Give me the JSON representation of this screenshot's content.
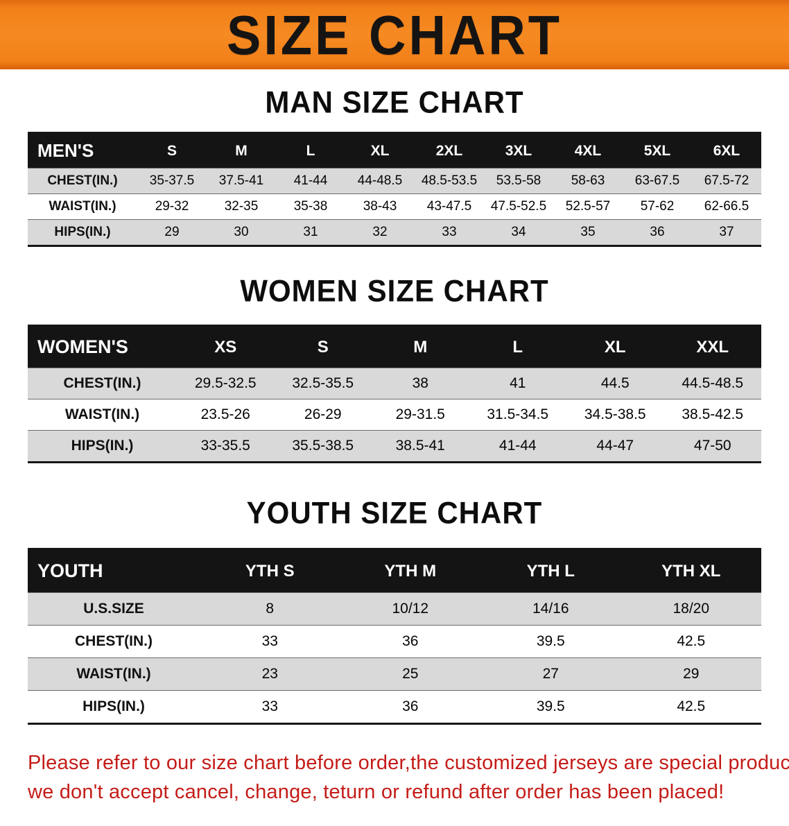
{
  "banner": {
    "title": "SIZE CHART",
    "bg_color": "#f28019",
    "text_color": "#161413"
  },
  "sections": [
    {
      "title": "MAN SIZE CHART",
      "table": {
        "header_label": "MEN'S",
        "columns": [
          "S",
          "M",
          "L",
          "XL",
          "2XL",
          "3XL",
          "4XL",
          "5XL",
          "6XL"
        ],
        "rows": [
          {
            "label": "CHEST(IN.)",
            "values": [
              "35-37.5",
              "37.5-41",
              "41-44",
              "44-48.5",
              "48.5-53.5",
              "53.5-58",
              "58-63",
              "63-67.5",
              "67.5-72"
            ]
          },
          {
            "label": "WAIST(IN.)",
            "values": [
              "29-32",
              "32-35",
              "35-38",
              "38-43",
              "43-47.5",
              "47.5-52.5",
              "52.5-57",
              "57-62",
              "62-66.5"
            ]
          },
          {
            "label": "HIPS(IN.)",
            "values": [
              "29",
              "30",
              "31",
              "32",
              "33",
              "34",
              "35",
              "36",
              "37"
            ]
          }
        ]
      }
    },
    {
      "title": "WOMEN SIZE CHART",
      "table": {
        "header_label": "WOMEN'S",
        "columns": [
          "XS",
          "S",
          "M",
          "L",
          "XL",
          "XXL"
        ],
        "rows": [
          {
            "label": "CHEST(IN.)",
            "values": [
              "29.5-32.5",
              "32.5-35.5",
              "38",
              "41",
              "44.5",
              "44.5-48.5"
            ]
          },
          {
            "label": "WAIST(IN.)",
            "values": [
              "23.5-26",
              "26-29",
              "29-31.5",
              "31.5-34.5",
              "34.5-38.5",
              "38.5-42.5"
            ]
          },
          {
            "label": "HIPS(IN.)",
            "values": [
              "33-35.5",
              "35.5-38.5",
              "38.5-41",
              "41-44",
              "44-47",
              "47-50"
            ]
          }
        ]
      }
    },
    {
      "title": "YOUTH SIZE CHART",
      "table": {
        "header_label": "YOUTH",
        "columns": [
          "YTH S",
          "YTH M",
          "YTH L",
          "YTH XL"
        ],
        "rows": [
          {
            "label": "U.S.SIZE",
            "values": [
              "8",
              "10/12",
              "14/16",
              "18/20"
            ]
          },
          {
            "label": "CHEST(IN.)",
            "values": [
              "33",
              "36",
              "39.5",
              "42.5"
            ]
          },
          {
            "label": "WAIST(IN.)",
            "values": [
              "23",
              "25",
              "27",
              "29"
            ]
          },
          {
            "label": "HIPS(IN.)",
            "values": [
              "33",
              "36",
              "39.5",
              "42.5"
            ]
          }
        ]
      }
    }
  ],
  "footer": {
    "line1": "Please refer to our size chart before order,the customized jerseys are special products,",
    "line2": "we don't accept cancel, change, teturn or refund after order has been placed!",
    "text_color": "#c41c18"
  }
}
